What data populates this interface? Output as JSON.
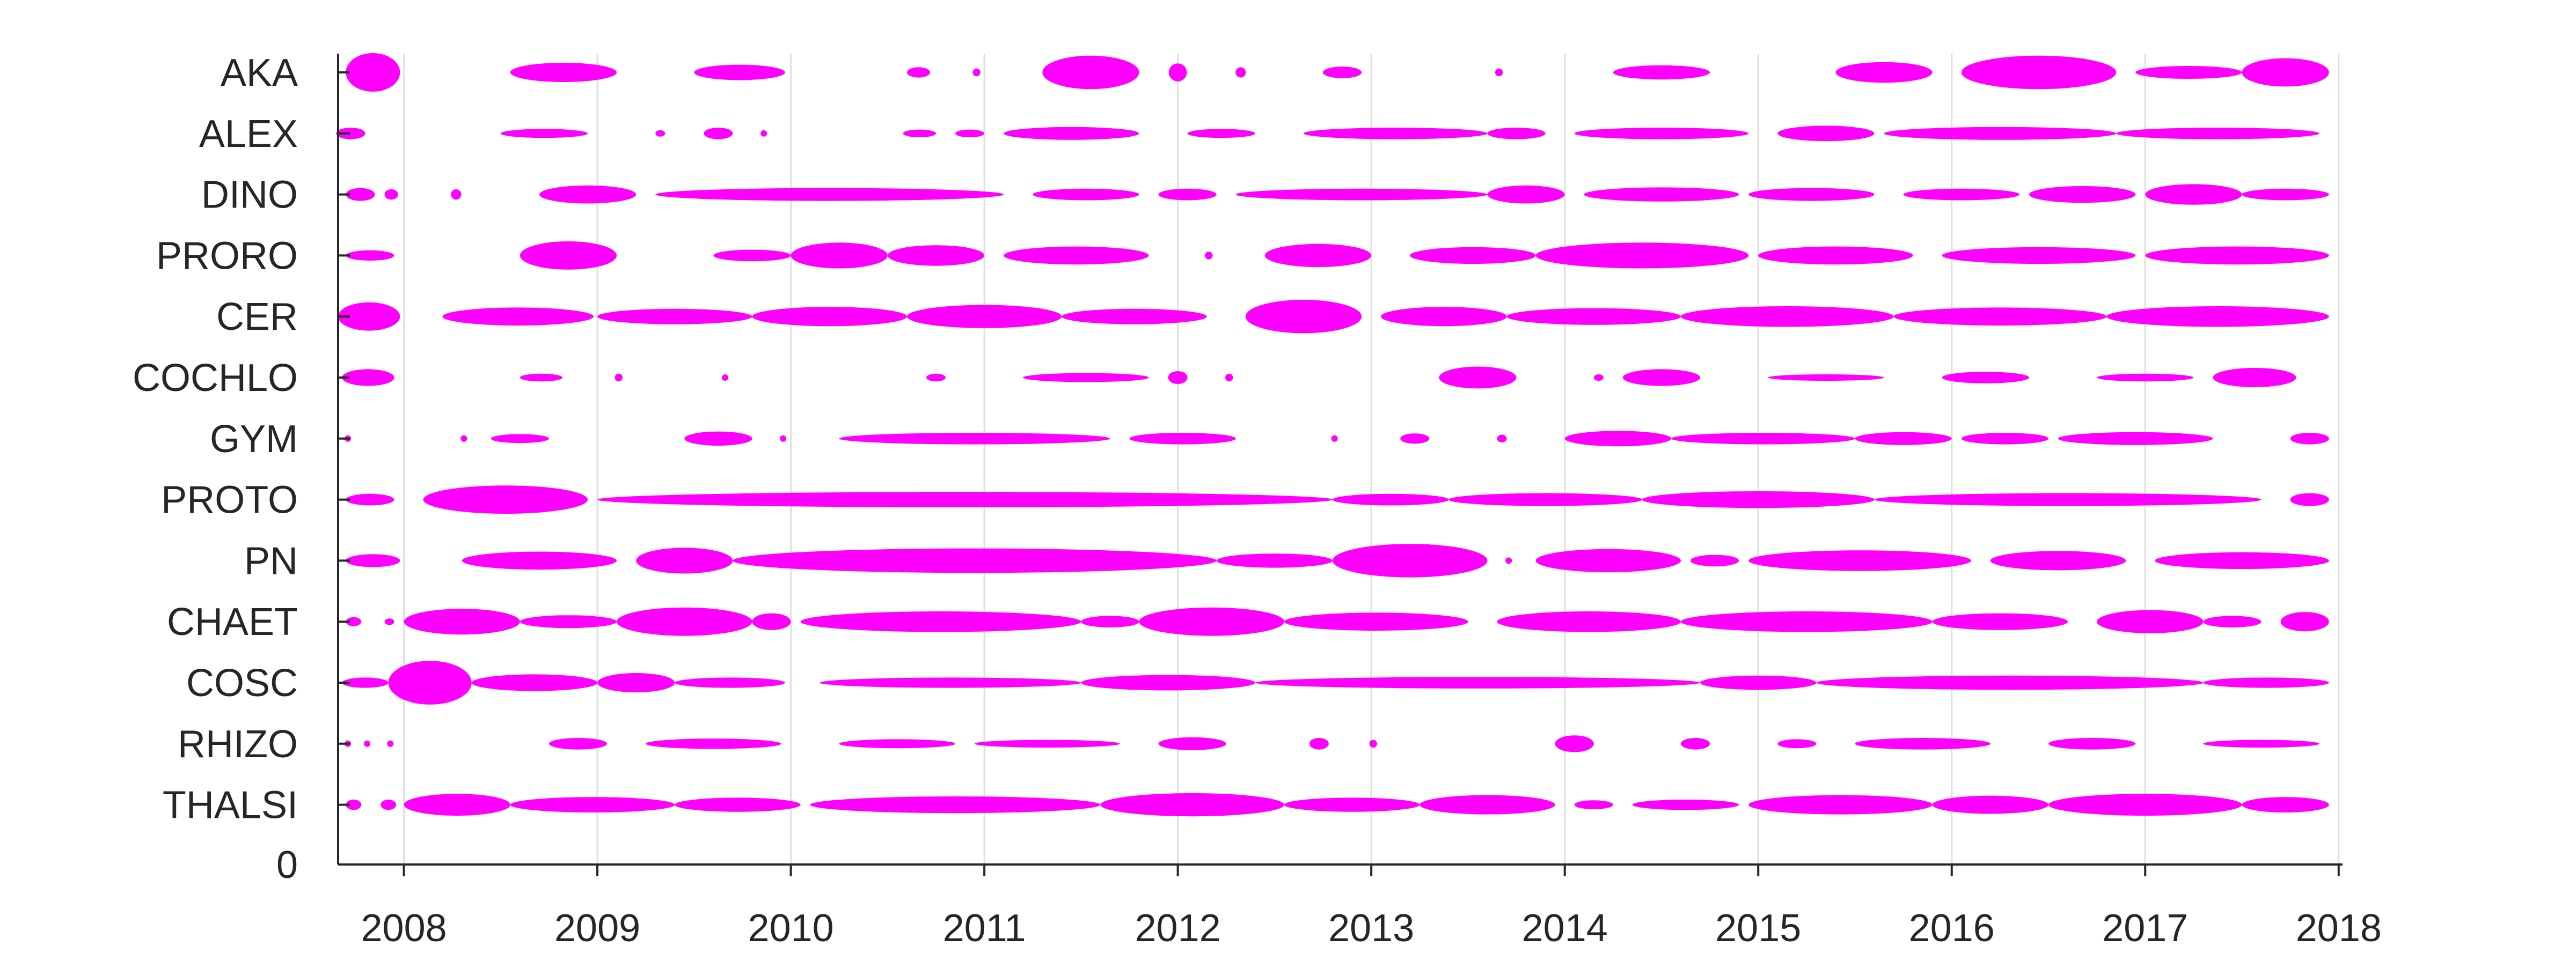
{
  "chart_data": {
    "type": "scatter",
    "title": "",
    "xlabel": "",
    "ylabel": "",
    "xlim": [
      2007.66,
      2018.02
    ],
    "ylim": [
      0,
      13
    ],
    "grid": "vertical lines at x ticks",
    "x_ticks": [
      "2008",
      "2009",
      "2010",
      "2011",
      "2012",
      "2013",
      "2014",
      "2015",
      "2016",
      "2017",
      "2018"
    ],
    "y_zero_label": "0",
    "marker_color": "#ff00ff",
    "categories": [
      "AKA",
      "ALEX",
      "DINO",
      "PRORO",
      "CER",
      "COCHLO",
      "GYM",
      "PROTO",
      "PN",
      "CHAET",
      "COSC",
      "RHIZO",
      "THALSI"
    ],
    "series": [
      {
        "name": "AKA",
        "segments": [
          [
            2007.7,
            2007.98,
            3.0
          ],
          [
            2008.55,
            2009.1,
            1.5
          ],
          [
            2009.5,
            2009.97,
            1.2
          ],
          [
            2010.6,
            2010.72,
            0.8
          ],
          [
            2010.95,
            2010.97,
            0.6
          ],
          [
            2011.3,
            2011.8,
            2.6
          ],
          [
            2011.97,
            2012.03,
            1.4
          ],
          [
            2012.3,
            2012.35,
            0.8
          ],
          [
            2012.75,
            2012.95,
            0.9
          ],
          [
            2013.65,
            2013.67,
            0.6
          ],
          [
            2014.25,
            2014.75,
            1.1
          ],
          [
            2015.4,
            2015.9,
            1.6
          ],
          [
            2016.05,
            2016.85,
            2.6
          ],
          [
            2016.95,
            2017.5,
            1.0
          ],
          [
            2017.5,
            2017.95,
            2.2
          ]
        ]
      },
      {
        "name": "ALEX",
        "segments": [
          [
            2007.65,
            2007.8,
            0.9
          ],
          [
            2008.5,
            2008.95,
            0.7
          ],
          [
            2009.3,
            2009.35,
            0.5
          ],
          [
            2009.55,
            2009.7,
            0.9
          ],
          [
            2009.85,
            2009.87,
            0.5
          ],
          [
            2010.58,
            2010.75,
            0.6
          ],
          [
            2010.85,
            2011.0,
            0.6
          ],
          [
            2011.1,
            2011.8,
            1.0
          ],
          [
            2012.05,
            2012.4,
            0.7
          ],
          [
            2012.65,
            2013.6,
            0.9
          ],
          [
            2013.6,
            2013.9,
            0.9
          ],
          [
            2014.05,
            2014.95,
            0.9
          ],
          [
            2015.1,
            2015.6,
            1.2
          ],
          [
            2015.65,
            2016.85,
            1.0
          ],
          [
            2016.85,
            2017.9,
            0.9
          ]
        ]
      },
      {
        "name": "DINO",
        "segments": [
          [
            2007.7,
            2007.85,
            1.0
          ],
          [
            2007.9,
            2007.97,
            0.8
          ],
          [
            2008.25,
            2008.29,
            0.8
          ],
          [
            2008.7,
            2009.2,
            1.4
          ],
          [
            2009.3,
            2011.1,
            1.0
          ],
          [
            2011.25,
            2011.8,
            0.9
          ],
          [
            2011.9,
            2012.2,
            0.9
          ],
          [
            2012.3,
            2013.6,
            0.9
          ],
          [
            2013.6,
            2014.0,
            1.4
          ],
          [
            2014.1,
            2014.9,
            1.1
          ],
          [
            2014.95,
            2015.6,
            1.0
          ],
          [
            2015.75,
            2016.35,
            0.9
          ],
          [
            2016.4,
            2016.95,
            1.3
          ],
          [
            2017.0,
            2017.5,
            1.6
          ],
          [
            2017.5,
            2017.95,
            0.9
          ]
        ]
      },
      {
        "name": "PRORO",
        "segments": [
          [
            2007.7,
            2007.95,
            0.8
          ],
          [
            2008.6,
            2009.1,
            2.2
          ],
          [
            2009.6,
            2010.0,
            0.9
          ],
          [
            2010.0,
            2010.5,
            2.0
          ],
          [
            2010.5,
            2011.0,
            1.6
          ],
          [
            2011.1,
            2011.85,
            1.4
          ],
          [
            2012.15,
            2012.17,
            0.6
          ],
          [
            2012.45,
            2013.0,
            1.8
          ],
          [
            2013.2,
            2013.85,
            1.3
          ],
          [
            2013.85,
            2014.95,
            2.0
          ],
          [
            2015.0,
            2015.8,
            1.4
          ],
          [
            2015.95,
            2016.95,
            1.3
          ],
          [
            2017.0,
            2017.95,
            1.4
          ]
        ]
      },
      {
        "name": "CER",
        "segments": [
          [
            2007.66,
            2007.98,
            2.2
          ],
          [
            2008.2,
            2008.98,
            1.4
          ],
          [
            2009.0,
            2009.8,
            1.2
          ],
          [
            2009.8,
            2010.6,
            1.5
          ],
          [
            2010.6,
            2011.4,
            1.8
          ],
          [
            2011.4,
            2012.15,
            1.2
          ],
          [
            2012.35,
            2012.95,
            2.6
          ],
          [
            2013.05,
            2013.7,
            1.5
          ],
          [
            2013.7,
            2014.6,
            1.3
          ],
          [
            2014.6,
            2015.7,
            1.6
          ],
          [
            2015.7,
            2016.8,
            1.4
          ],
          [
            2016.8,
            2017.95,
            1.6
          ]
        ]
      },
      {
        "name": "COCHLO",
        "segments": [
          [
            2007.68,
            2007.95,
            1.3
          ],
          [
            2008.6,
            2008.82,
            0.6
          ],
          [
            2009.1,
            2009.12,
            0.6
          ],
          [
            2009.65,
            2009.67,
            0.5
          ],
          [
            2010.7,
            2010.8,
            0.6
          ],
          [
            2011.2,
            2011.85,
            0.7
          ],
          [
            2011.95,
            2012.05,
            1.0
          ],
          [
            2012.25,
            2012.28,
            0.6
          ],
          [
            2013.35,
            2013.75,
            1.7
          ],
          [
            2014.15,
            2014.2,
            0.5
          ],
          [
            2014.3,
            2014.7,
            1.3
          ],
          [
            2015.05,
            2015.65,
            0.5
          ],
          [
            2015.95,
            2016.4,
            0.9
          ],
          [
            2016.75,
            2017.25,
            0.6
          ],
          [
            2017.35,
            2017.78,
            1.5
          ]
        ]
      },
      {
        "name": "GYM",
        "segments": [
          [
            2007.7,
            2007.72,
            0.5
          ],
          [
            2008.3,
            2008.32,
            0.5
          ],
          [
            2008.45,
            2008.75,
            0.7
          ],
          [
            2009.45,
            2009.8,
            1.1
          ],
          [
            2009.95,
            2009.97,
            0.5
          ],
          [
            2010.25,
            2011.65,
            0.9
          ],
          [
            2011.75,
            2012.3,
            0.9
          ],
          [
            2012.8,
            2012.82,
            0.5
          ],
          [
            2013.15,
            2013.3,
            0.8
          ],
          [
            2013.65,
            2013.7,
            0.6
          ],
          [
            2014.0,
            2014.55,
            1.2
          ],
          [
            2014.55,
            2015.5,
            0.9
          ],
          [
            2015.5,
            2016.0,
            1.0
          ],
          [
            2016.05,
            2016.5,
            0.9
          ],
          [
            2016.55,
            2017.35,
            1.0
          ],
          [
            2017.75,
            2017.95,
            0.9
          ]
        ]
      },
      {
        "name": "PROTO",
        "segments": [
          [
            2007.7,
            2007.95,
            0.9
          ],
          [
            2008.1,
            2008.95,
            2.2
          ],
          [
            2009.0,
            2012.8,
            1.2
          ],
          [
            2012.8,
            2013.4,
            0.9
          ],
          [
            2013.4,
            2014.4,
            1.0
          ],
          [
            2014.4,
            2015.6,
            1.3
          ],
          [
            2015.6,
            2017.6,
            1.0
          ],
          [
            2017.75,
            2017.95,
            1.0
          ]
        ]
      },
      {
        "name": "PN",
        "segments": [
          [
            2007.7,
            2007.98,
            1.0
          ],
          [
            2008.3,
            2009.1,
            1.4
          ],
          [
            2009.2,
            2009.7,
            2.0
          ],
          [
            2009.7,
            2012.2,
            1.9
          ],
          [
            2012.2,
            2012.8,
            1.1
          ],
          [
            2012.8,
            2013.6,
            2.6
          ],
          [
            2013.7,
            2013.72,
            0.5
          ],
          [
            2013.85,
            2014.6,
            1.8
          ],
          [
            2014.65,
            2014.9,
            0.9
          ],
          [
            2014.95,
            2016.1,
            1.6
          ],
          [
            2016.2,
            2016.9,
            1.5
          ],
          [
            2017.05,
            2017.95,
            1.3
          ]
        ]
      },
      {
        "name": "CHAET",
        "segments": [
          [
            2007.7,
            2007.78,
            0.7
          ],
          [
            2007.9,
            2007.95,
            0.5
          ],
          [
            2008.0,
            2008.6,
            2.0
          ],
          [
            2008.6,
            2009.1,
            1.0
          ],
          [
            2009.1,
            2009.8,
            2.2
          ],
          [
            2009.8,
            2010.0,
            1.3
          ],
          [
            2010.05,
            2011.5,
            1.6
          ],
          [
            2011.5,
            2011.8,
            0.9
          ],
          [
            2011.8,
            2012.55,
            2.2
          ],
          [
            2012.55,
            2013.5,
            1.4
          ],
          [
            2013.65,
            2014.6,
            1.6
          ],
          [
            2014.6,
            2015.9,
            1.6
          ],
          [
            2015.9,
            2016.6,
            1.3
          ],
          [
            2016.75,
            2017.3,
            1.8
          ],
          [
            2017.3,
            2017.6,
            0.9
          ],
          [
            2017.7,
            2017.95,
            1.5
          ]
        ]
      },
      {
        "name": "COSC",
        "segments": [
          [
            2007.68,
            2007.92,
            0.8
          ],
          [
            2007.92,
            2008.35,
            3.4
          ],
          [
            2008.35,
            2009.0,
            1.3
          ],
          [
            2009.0,
            2009.4,
            1.5
          ],
          [
            2009.4,
            2009.97,
            0.8
          ],
          [
            2010.15,
            2011.5,
            0.8
          ],
          [
            2011.5,
            2012.4,
            1.2
          ],
          [
            2012.4,
            2014.7,
            0.9
          ],
          [
            2014.7,
            2015.3,
            1.1
          ],
          [
            2015.3,
            2017.3,
            1.1
          ],
          [
            2017.3,
            2017.95,
            0.8
          ]
        ]
      },
      {
        "name": "RHIZO",
        "segments": [
          [
            2007.7,
            2007.72,
            0.5
          ],
          [
            2007.8,
            2007.82,
            0.5
          ],
          [
            2007.92,
            2007.94,
            0.5
          ],
          [
            2008.75,
            2009.05,
            0.9
          ],
          [
            2009.25,
            2009.95,
            0.8
          ],
          [
            2010.25,
            2010.85,
            0.7
          ],
          [
            2010.95,
            2011.7,
            0.6
          ],
          [
            2011.9,
            2012.25,
            1.0
          ],
          [
            2012.68,
            2012.78,
            0.9
          ],
          [
            2013.0,
            2013.02,
            0.6
          ],
          [
            2013.95,
            2014.15,
            1.3
          ],
          [
            2014.6,
            2014.75,
            0.9
          ],
          [
            2015.1,
            2015.3,
            0.7
          ],
          [
            2015.5,
            2016.2,
            0.9
          ],
          [
            2016.5,
            2016.95,
            0.9
          ],
          [
            2017.3,
            2017.9,
            0.6
          ]
        ]
      },
      {
        "name": "THALSI",
        "segments": [
          [
            2007.7,
            2007.78,
            0.8
          ],
          [
            2007.88,
            2007.96,
            0.8
          ],
          [
            2008.0,
            2008.55,
            1.7
          ],
          [
            2008.55,
            2009.4,
            1.2
          ],
          [
            2009.4,
            2010.05,
            1.1
          ],
          [
            2010.1,
            2011.6,
            1.3
          ],
          [
            2011.6,
            2012.55,
            1.8
          ],
          [
            2012.55,
            2013.25,
            1.1
          ],
          [
            2013.25,
            2013.95,
            1.5
          ],
          [
            2014.05,
            2014.25,
            0.7
          ],
          [
            2014.35,
            2014.9,
            0.8
          ],
          [
            2014.95,
            2015.9,
            1.5
          ],
          [
            2015.9,
            2016.5,
            1.4
          ],
          [
            2016.5,
            2017.5,
            1.7
          ],
          [
            2017.5,
            2017.95,
            1.2
          ]
        ]
      }
    ]
  }
}
